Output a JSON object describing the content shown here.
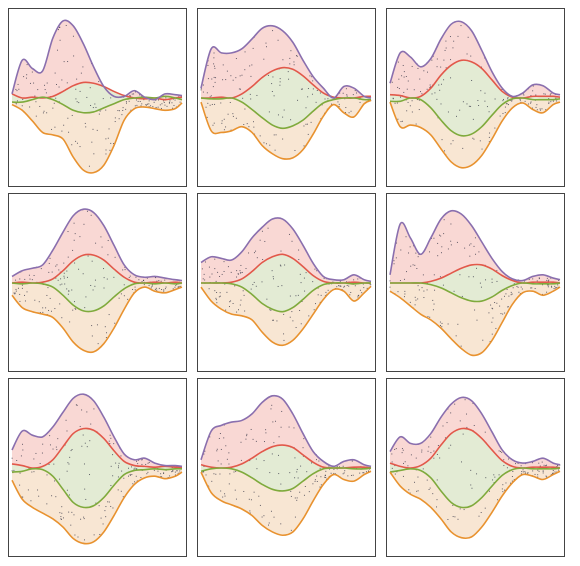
{
  "chart_data": {
    "type": "area",
    "title": "",
    "xlabel": "",
    "ylabel": "",
    "grid": false,
    "legend": "none",
    "panels_grid": {
      "rows": 3,
      "cols": 3
    },
    "colors": {
      "upper_envelope": "#8a6fae",
      "upper_fill": "#f9d8d4",
      "mid_upper": "#e2584a",
      "mid_fill": "#e3ebd4",
      "mid_lower": "#7faa3c",
      "lower_fill": "#f8e6d3",
      "lower_envelope": "#e8922f",
      "scatter": "#333344"
    },
    "panels": [
      {
        "xlim": [
          0,
          10
        ],
        "ylim": [
          -1,
          1
        ],
        "seed": 11,
        "n_points": 180,
        "x": [
          0.0,
          0.6,
          1.2,
          1.8,
          2.4,
          3.0,
          3.6,
          4.2,
          4.8,
          5.4,
          6.0,
          6.6,
          7.2,
          7.8,
          8.4,
          9.0,
          9.6,
          10.0
        ],
        "upper": [
          0.05,
          0.46,
          0.36,
          0.33,
          0.73,
          0.94,
          0.88,
          0.66,
          0.38,
          0.14,
          0.02,
          0.02,
          0.09,
          0.01,
          -0.02,
          0.05,
          0.04,
          0.03
        ],
        "mid_upper": [
          0.05,
          0.0,
          0.01,
          0.0,
          0.02,
          0.08,
          0.15,
          0.19,
          0.18,
          0.14,
          0.08,
          0.03,
          0.0,
          -0.01,
          0.0,
          -0.02,
          0.0,
          0.01
        ],
        "mid_lower": [
          -0.05,
          -0.05,
          -0.02,
          0.01,
          -0.02,
          -0.08,
          -0.15,
          -0.18,
          -0.17,
          -0.12,
          -0.07,
          -0.02,
          0.0,
          0.01,
          0.0,
          0.02,
          0.0,
          -0.02
        ],
        "lower": [
          -0.08,
          -0.15,
          -0.28,
          -0.42,
          -0.45,
          -0.5,
          -0.72,
          -0.88,
          -0.91,
          -0.82,
          -0.58,
          -0.27,
          -0.13,
          -0.11,
          -0.13,
          -0.15,
          -0.13,
          -0.06
        ]
      },
      {
        "xlim": [
          0,
          10
        ],
        "ylim": [
          -1,
          1
        ],
        "seed": 23,
        "n_points": 170,
        "x": [
          0.0,
          0.6,
          1.2,
          1.8,
          2.4,
          3.0,
          3.6,
          4.2,
          4.8,
          5.4,
          6.0,
          6.6,
          7.2,
          7.8,
          8.4,
          9.0,
          9.6,
          10.0
        ],
        "upper": [
          0.12,
          0.6,
          0.55,
          0.55,
          0.6,
          0.72,
          0.85,
          0.88,
          0.82,
          0.68,
          0.46,
          0.26,
          0.12,
          0.0,
          0.14,
          0.12,
          0.02,
          0.0
        ],
        "mid_upper": [
          0.0,
          0.0,
          0.01,
          0.0,
          0.05,
          0.14,
          0.25,
          0.33,
          0.37,
          0.35,
          0.27,
          0.16,
          0.06,
          0.01,
          0.0,
          0.0,
          0.02,
          0.02
        ],
        "mid_lower": [
          0.0,
          -0.01,
          -0.01,
          0.0,
          -0.05,
          -0.14,
          -0.24,
          -0.33,
          -0.37,
          -0.34,
          -0.27,
          -0.16,
          -0.06,
          -0.02,
          0.0,
          0.0,
          -0.02,
          -0.02
        ],
        "lower": [
          -0.05,
          -0.4,
          -0.42,
          -0.4,
          -0.35,
          -0.42,
          -0.58,
          -0.68,
          -0.74,
          -0.73,
          -0.63,
          -0.44,
          -0.22,
          -0.08,
          -0.18,
          -0.23,
          -0.07,
          -0.03
        ]
      },
      {
        "xlim": [
          0,
          10
        ],
        "ylim": [
          -1,
          1
        ],
        "seed": 37,
        "n_points": 170,
        "x": [
          0.0,
          0.6,
          1.2,
          1.8,
          2.4,
          3.0,
          3.6,
          4.2,
          4.8,
          5.4,
          6.0,
          6.6,
          7.2,
          7.8,
          8.4,
          9.0,
          9.6,
          10.0
        ],
        "upper": [
          0.18,
          0.55,
          0.5,
          0.38,
          0.48,
          0.72,
          0.9,
          0.93,
          0.82,
          0.58,
          0.32,
          0.12,
          0.02,
          0.06,
          0.16,
          0.15,
          0.06,
          0.04
        ],
        "mid_upper": [
          0.04,
          0.03,
          0.0,
          0.02,
          0.12,
          0.28,
          0.4,
          0.46,
          0.44,
          0.36,
          0.22,
          0.08,
          0.01,
          0.0,
          0.02,
          0.02,
          0.02,
          0.01
        ],
        "mid_lower": [
          -0.04,
          -0.04,
          0.0,
          -0.02,
          -0.12,
          -0.27,
          -0.4,
          -0.46,
          -0.44,
          -0.35,
          -0.21,
          -0.08,
          -0.01,
          0.0,
          -0.02,
          -0.02,
          -0.02,
          -0.01
        ],
        "lower": [
          -0.05,
          -0.35,
          -0.33,
          -0.36,
          -0.45,
          -0.62,
          -0.78,
          -0.85,
          -0.82,
          -0.7,
          -0.5,
          -0.28,
          -0.12,
          -0.06,
          -0.14,
          -0.18,
          -0.08,
          -0.05
        ]
      },
      {
        "xlim": [
          0,
          10
        ],
        "ylim": [
          -1,
          1
        ],
        "seed": 41,
        "n_points": 180,
        "x": [
          0.0,
          0.6,
          1.2,
          1.8,
          2.4,
          3.0,
          3.6,
          4.2,
          4.8,
          5.4,
          6.0,
          6.6,
          7.2,
          7.8,
          8.4,
          9.0,
          9.6,
          10.0
        ],
        "upper": [
          0.08,
          0.15,
          0.18,
          0.22,
          0.4,
          0.62,
          0.82,
          0.9,
          0.86,
          0.7,
          0.46,
          0.22,
          0.1,
          0.07,
          0.08,
          0.06,
          0.04,
          0.03
        ],
        "mid_upper": [
          0.0,
          0.01,
          0.0,
          0.01,
          0.05,
          0.15,
          0.27,
          0.34,
          0.34,
          0.28,
          0.17,
          0.07,
          0.01,
          0.0,
          0.01,
          0.0,
          0.01,
          0.0
        ],
        "mid_lower": [
          0.0,
          -0.01,
          0.0,
          -0.01,
          -0.05,
          -0.15,
          -0.27,
          -0.34,
          -0.34,
          -0.28,
          -0.17,
          -0.07,
          -0.01,
          0.0,
          -0.01,
          0.0,
          -0.01,
          0.0
        ],
        "lower": [
          -0.15,
          -0.3,
          -0.35,
          -0.38,
          -0.42,
          -0.55,
          -0.72,
          -0.82,
          -0.84,
          -0.74,
          -0.55,
          -0.32,
          -0.12,
          -0.05,
          -0.1,
          -0.12,
          -0.08,
          -0.05
        ]
      },
      {
        "xlim": [
          0,
          10
        ],
        "ylim": [
          -1,
          1
        ],
        "seed": 53,
        "n_points": 170,
        "x": [
          0.0,
          0.6,
          1.2,
          1.8,
          2.4,
          3.0,
          3.6,
          4.2,
          4.8,
          5.4,
          6.0,
          6.6,
          7.2,
          7.8,
          8.4,
          9.0,
          9.6,
          10.0
        ],
        "upper": [
          0.25,
          0.32,
          0.3,
          0.28,
          0.38,
          0.55,
          0.68,
          0.78,
          0.78,
          0.66,
          0.46,
          0.24,
          0.08,
          0.04,
          0.04,
          0.1,
          0.04,
          0.02
        ],
        "mid_upper": [
          0.0,
          0.0,
          0.0,
          0.01,
          0.05,
          0.14,
          0.25,
          0.32,
          0.35,
          0.3,
          0.2,
          0.09,
          0.02,
          0.0,
          0.0,
          0.01,
          0.0,
          0.0
        ],
        "mid_lower": [
          0.0,
          0.0,
          0.0,
          -0.01,
          -0.05,
          -0.14,
          -0.25,
          -0.32,
          -0.35,
          -0.3,
          -0.2,
          -0.09,
          -0.02,
          0.0,
          0.0,
          -0.01,
          0.0,
          0.0
        ],
        "lower": [
          -0.05,
          -0.22,
          -0.32,
          -0.38,
          -0.4,
          -0.45,
          -0.6,
          -0.72,
          -0.76,
          -0.7,
          -0.56,
          -0.38,
          -0.2,
          -0.08,
          -0.1,
          -0.22,
          -0.12,
          -0.04
        ]
      },
      {
        "xlim": [
          0,
          10
        ],
        "ylim": [
          -1,
          1
        ],
        "seed": 67,
        "n_points": 170,
        "x": [
          0.0,
          0.6,
          1.2,
          1.8,
          2.4,
          3.0,
          3.6,
          4.2,
          4.8,
          5.4,
          6.0,
          6.6,
          7.2,
          7.8,
          8.4,
          9.0,
          9.6,
          10.0
        ],
        "upper": [
          0.1,
          0.72,
          0.55,
          0.35,
          0.55,
          0.78,
          0.88,
          0.84,
          0.7,
          0.5,
          0.3,
          0.14,
          0.05,
          0.03,
          0.08,
          0.1,
          0.06,
          0.04
        ],
        "mid_upper": [
          0.0,
          0.0,
          0.0,
          0.0,
          0.02,
          0.06,
          0.12,
          0.18,
          0.22,
          0.22,
          0.17,
          0.09,
          0.03,
          0.0,
          0.01,
          0.01,
          0.01,
          0.0
        ],
        "mid_lower": [
          0.0,
          0.0,
          0.0,
          0.0,
          -0.02,
          -0.06,
          -0.12,
          -0.18,
          -0.22,
          -0.22,
          -0.17,
          -0.09,
          -0.03,
          0.0,
          -0.01,
          -0.01,
          -0.01,
          0.0
        ],
        "lower": [
          -0.1,
          -0.18,
          -0.28,
          -0.38,
          -0.45,
          -0.55,
          -0.68,
          -0.8,
          -0.88,
          -0.85,
          -0.7,
          -0.48,
          -0.26,
          -0.12,
          -0.1,
          -0.15,
          -0.1,
          -0.05
        ]
      },
      {
        "xlim": [
          0,
          10
        ],
        "ylim": [
          -1,
          1
        ],
        "seed": 71,
        "n_points": 180,
        "x": [
          0.0,
          0.6,
          1.2,
          1.8,
          2.4,
          3.0,
          3.6,
          4.2,
          4.8,
          5.4,
          6.0,
          6.6,
          7.2,
          7.8,
          8.4,
          9.0,
          9.6,
          10.0
        ],
        "upper": [
          0.22,
          0.45,
          0.4,
          0.38,
          0.5,
          0.68,
          0.85,
          0.9,
          0.82,
          0.62,
          0.38,
          0.17,
          0.1,
          0.12,
          0.06,
          0.03,
          0.03,
          0.02
        ],
        "mid_upper": [
          0.05,
          0.03,
          0.0,
          0.02,
          0.1,
          0.26,
          0.42,
          0.48,
          0.46,
          0.36,
          0.21,
          0.08,
          0.03,
          0.02,
          0.01,
          0.02,
          0.01,
          0.01
        ],
        "mid_lower": [
          -0.05,
          -0.04,
          -0.01,
          -0.02,
          -0.1,
          -0.26,
          -0.42,
          -0.48,
          -0.46,
          -0.36,
          -0.21,
          -0.08,
          -0.03,
          -0.02,
          -0.01,
          -0.02,
          -0.01,
          -0.01
        ],
        "lower": [
          -0.15,
          -0.38,
          -0.48,
          -0.55,
          -0.62,
          -0.72,
          -0.86,
          -0.92,
          -0.9,
          -0.78,
          -0.58,
          -0.36,
          -0.2,
          -0.12,
          -0.1,
          -0.13,
          -0.1,
          -0.05
        ]
      },
      {
        "xlim": [
          0,
          10
        ],
        "ylim": [
          -1,
          1
        ],
        "seed": 83,
        "n_points": 170,
        "x": [
          0.0,
          0.6,
          1.2,
          1.8,
          2.4,
          3.0,
          3.6,
          4.2,
          4.8,
          5.4,
          6.0,
          6.6,
          7.2,
          7.8,
          8.4,
          9.0,
          9.6,
          10.0
        ],
        "upper": [
          0.1,
          0.45,
          0.52,
          0.56,
          0.58,
          0.66,
          0.8,
          0.88,
          0.84,
          0.66,
          0.42,
          0.2,
          0.08,
          0.02,
          0.08,
          0.1,
          0.04,
          0.02
        ],
        "mid_upper": [
          0.04,
          0.01,
          0.0,
          0.01,
          0.05,
          0.12,
          0.2,
          0.26,
          0.28,
          0.25,
          0.16,
          0.07,
          0.01,
          0.0,
          0.0,
          0.01,
          0.01,
          0.0
        ],
        "mid_lower": [
          -0.04,
          -0.01,
          0.0,
          -0.01,
          -0.05,
          -0.12,
          -0.2,
          -0.26,
          -0.28,
          -0.25,
          -0.16,
          -0.07,
          -0.01,
          0.0,
          0.0,
          -0.01,
          -0.01,
          0.0
        ],
        "lower": [
          -0.05,
          -0.3,
          -0.4,
          -0.45,
          -0.5,
          -0.58,
          -0.7,
          -0.78,
          -0.82,
          -0.78,
          -0.62,
          -0.4,
          -0.2,
          -0.08,
          -0.14,
          -0.16,
          -0.08,
          -0.04
        ]
      },
      {
        "xlim": [
          0,
          10
        ],
        "ylim": [
          -1,
          1
        ],
        "seed": 97,
        "n_points": 160,
        "x": [
          0.0,
          0.6,
          1.2,
          1.8,
          2.4,
          3.0,
          3.6,
          4.2,
          4.8,
          5.4,
          6.0,
          6.6,
          7.2,
          7.8,
          8.4,
          9.0,
          9.6,
          10.0
        ],
        "upper": [
          0.2,
          0.38,
          0.3,
          0.3,
          0.42,
          0.62,
          0.78,
          0.86,
          0.82,
          0.66,
          0.44,
          0.22,
          0.1,
          0.06,
          0.08,
          0.12,
          0.06,
          0.04
        ],
        "mid_upper": [
          0.06,
          0.02,
          0.0,
          0.03,
          0.12,
          0.28,
          0.42,
          0.48,
          0.46,
          0.36,
          0.22,
          0.09,
          0.02,
          0.0,
          0.01,
          0.01,
          0.01,
          0.0
        ],
        "mid_lower": [
          -0.05,
          -0.03,
          -0.01,
          -0.03,
          -0.12,
          -0.28,
          -0.42,
          -0.48,
          -0.46,
          -0.36,
          -0.22,
          -0.09,
          -0.02,
          0.0,
          -0.01,
          -0.01,
          -0.01,
          0.0
        ],
        "lower": [
          -0.05,
          -0.22,
          -0.32,
          -0.38,
          -0.48,
          -0.62,
          -0.78,
          -0.85,
          -0.84,
          -0.72,
          -0.54,
          -0.34,
          -0.18,
          -0.08,
          -0.1,
          -0.14,
          -0.08,
          -0.04
        ]
      }
    ]
  }
}
